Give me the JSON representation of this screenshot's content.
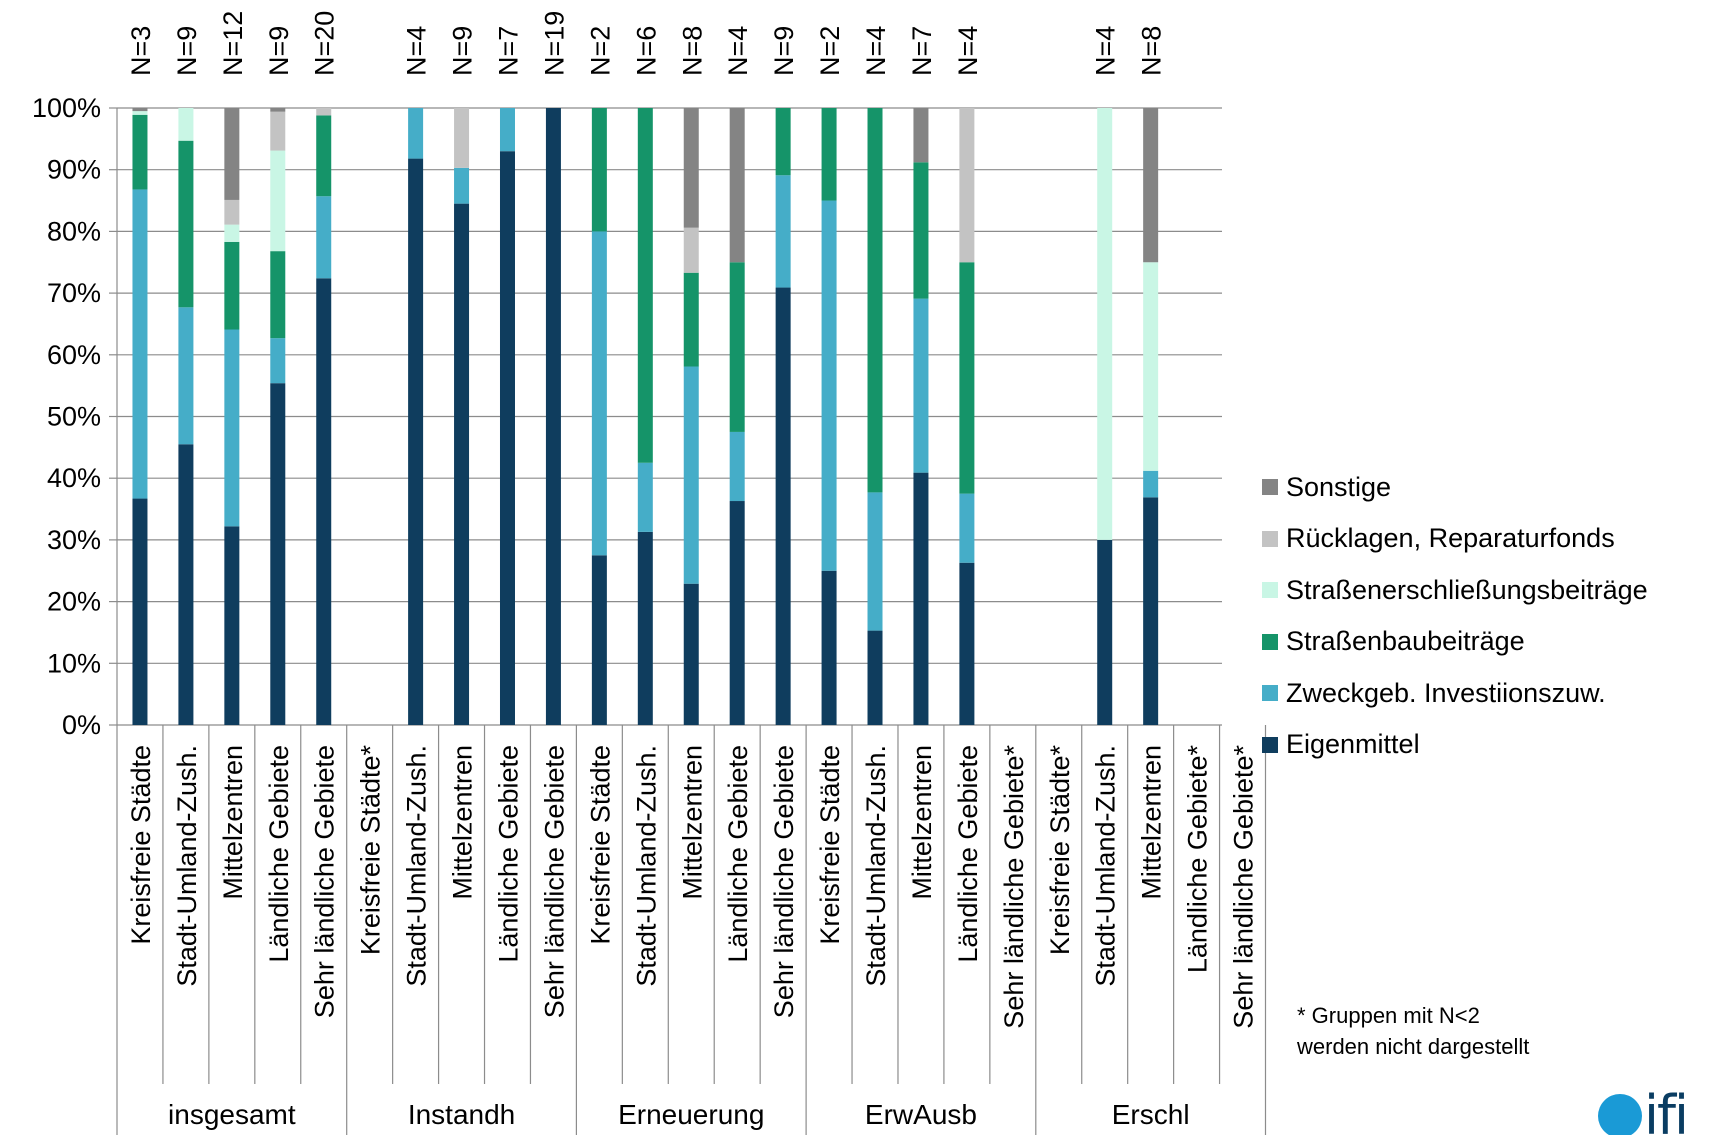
{
  "chart_data": {
    "type": "bar",
    "stacked": true,
    "percent": true,
    "ylim": [
      0,
      100
    ],
    "yticks": [
      "0%",
      "10%",
      "20%",
      "30%",
      "40%",
      "50%",
      "60%",
      "70%",
      "80%",
      "90%",
      "100%"
    ],
    "grid": true,
    "legend_position": "right",
    "series": [
      {
        "name": "Eigenmittel",
        "color": "#0f3d5e"
      },
      {
        "name": "Zweckgeb. Investiionszuw.",
        "color": "#45adc8"
      },
      {
        "name": "Straßenbaubeiträge",
        "color": "#159469"
      },
      {
        "name": "Straßenerschließungsbeiträge",
        "color": "#c9f6e5"
      },
      {
        "name": "Rücklagen, Reparaturfonds",
        "color": "#c3c3c3"
      },
      {
        "name": "Sonstige",
        "color": "#848484"
      }
    ],
    "groups": [
      {
        "label": "insgesamt",
        "bars": [
          {
            "category": "Kreisfreie Städte",
            "n": "N=3",
            "values": [
              36.7,
              50.1,
              12.1,
              0.6,
              0,
              0.5
            ]
          },
          {
            "category": "Stadt-Umland-Zush.",
            "n": "N=9",
            "values": [
              45.5,
              22.2,
              27.0,
              5.3,
              0,
              0
            ]
          },
          {
            "category": "Mittelzentren",
            "n": "N=12",
            "values": [
              32.2,
              31.9,
              14.2,
              2.8,
              4.0,
              14.9
            ]
          },
          {
            "category": "Ländliche Gebiete",
            "n": "N=9",
            "values": [
              55.4,
              7.3,
              14.1,
              16.3,
              6.3,
              0.6
            ]
          },
          {
            "category": "Sehr ländliche Gebiete",
            "n": "N=20",
            "values": [
              72.4,
              13.3,
              13.1,
              0,
              1.2,
              0
            ]
          }
        ]
      },
      {
        "label": "Instandh",
        "bars": [
          {
            "category": "Kreisfreie Städte*",
            "n": "",
            "values": null
          },
          {
            "category": "Stadt-Umland-Zush.",
            "n": "N=4",
            "values": [
              91.8,
              8.2,
              0,
              0,
              0,
              0
            ]
          },
          {
            "category": "Mittelzentren",
            "n": "N=9",
            "values": [
              84.5,
              5.8,
              0,
              0,
              9.7,
              0
            ]
          },
          {
            "category": "Ländliche Gebiete",
            "n": "N=7",
            "values": [
              93.0,
              7.0,
              0,
              0,
              0,
              0
            ]
          },
          {
            "category": "Sehr ländliche Gebiete",
            "n": "N=19",
            "values": [
              100,
              0,
              0,
              0,
              0,
              0
            ]
          }
        ]
      },
      {
        "label": "Erneuerung",
        "bars": [
          {
            "category": "Kreisfreie Städte",
            "n": "N=2",
            "values": [
              27.5,
              52.5,
              20.0,
              0,
              0,
              0
            ]
          },
          {
            "category": "Stadt-Umland-Zush.",
            "n": "N=6",
            "values": [
              31.3,
              11.2,
              57.5,
              0,
              0,
              0
            ]
          },
          {
            "category": "Mittelzentren",
            "n": "N=8",
            "values": [
              22.9,
              35.2,
              15.2,
              0,
              7.3,
              19.4
            ]
          },
          {
            "category": "Ländliche Gebiete",
            "n": "N=4",
            "values": [
              36.3,
              11.2,
              27.5,
              0,
              0,
              25.0
            ]
          },
          {
            "category": "Sehr ländliche Gebiete",
            "n": "N=9",
            "values": [
              70.9,
              18.2,
              10.9,
              0,
              0,
              0
            ]
          }
        ]
      },
      {
        "label": "ErwAusb",
        "bars": [
          {
            "category": "Kreisfreie Städte",
            "n": "N=2",
            "values": [
              25.0,
              60.0,
              15.0,
              0,
              0,
              0
            ]
          },
          {
            "category": "Stadt-Umland-Zush.",
            "n": "N=4",
            "values": [
              15.3,
              22.4,
              62.3,
              0,
              0,
              0
            ]
          },
          {
            "category": "Mittelzentren",
            "n": "N=7",
            "values": [
              40.9,
              28.2,
              22.1,
              0,
              0,
              8.8
            ]
          },
          {
            "category": "Ländliche Gebiete",
            "n": "N=4",
            "values": [
              26.3,
              11.2,
              37.5,
              0,
              25.0,
              0
            ]
          },
          {
            "category": "Sehr ländliche Gebiete*",
            "n": "",
            "values": null
          }
        ]
      },
      {
        "label": "Erschl",
        "bars": [
          {
            "category": "Kreisfreie Städte*",
            "n": "",
            "values": null
          },
          {
            "category": "Stadt-Umland-Zush.",
            "n": "N=4",
            "values": [
              30.0,
              0,
              0,
              70.0,
              0,
              0
            ]
          },
          {
            "category": "Mittelzentren",
            "n": "N=8",
            "values": [
              36.9,
              4.3,
              0,
              33.8,
              0,
              25.0
            ]
          },
          {
            "category": "Ländliche Gebiete*",
            "n": "",
            "values": null
          },
          {
            "category": "Sehr ländliche Gebiete*",
            "n": "",
            "values": null
          }
        ]
      }
    ],
    "footnote": "* Gruppen mit N<2 werden nicht dargestellt"
  },
  "logo": {
    "text": "ifi"
  }
}
